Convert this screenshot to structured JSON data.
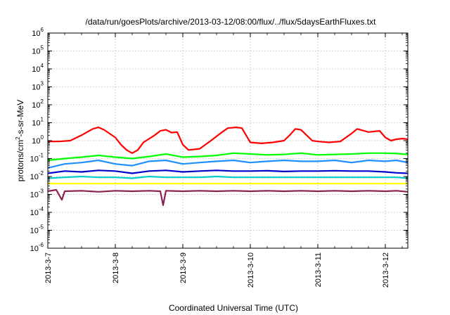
{
  "chart_data": {
    "type": "line",
    "title": "/data/run/goesPlots/archive/2013-03-12/08:00/flux/../flux/5daysEarthFluxes.txt",
    "xlabel": "Coordinated Universal Time (UTC)",
    "ylabel": "protons/cm²-s-sr-MeV",
    "ylabel_parts": {
      "before": "protons/cm",
      "sup": "2",
      "after": "-s-sr-MeV"
    },
    "yscale": "log",
    "ylim": [
      1e-06,
      1000000.0
    ],
    "xlim": [
      "2013-03-07T00:00",
      "2013-03-12T08:00"
    ],
    "grid": true,
    "legend": false,
    "y_ticks": [
      {
        "base": "10",
        "exp": "6",
        "value": 1000000.0
      },
      {
        "base": "10",
        "exp": "5",
        "value": 100000.0
      },
      {
        "base": "10",
        "exp": "4",
        "value": 10000.0
      },
      {
        "base": "10",
        "exp": "3",
        "value": 1000.0
      },
      {
        "base": "10",
        "exp": "2",
        "value": 100.0
      },
      {
        "base": "10",
        "exp": "1",
        "value": 10.0
      },
      {
        "base": "10",
        "exp": "0",
        "value": 1.0
      },
      {
        "base": "10",
        "exp": "-1",
        "value": 0.1
      },
      {
        "base": "10",
        "exp": "-2",
        "value": 0.01
      },
      {
        "base": "10",
        "exp": "-3",
        "value": 0.001
      },
      {
        "base": "10",
        "exp": "-4",
        "value": 0.0001
      },
      {
        "base": "10",
        "exp": "-5",
        "value": 1e-05
      },
      {
        "base": "10",
        "exp": "-6",
        "value": 1e-06
      }
    ],
    "x_ticks": [
      {
        "label": "2013-3-7",
        "value": "2013-03-07T00:00"
      },
      {
        "label": "2013-3-8",
        "value": "2013-03-08T00:00"
      },
      {
        "label": "2013-3-9",
        "value": "2013-03-09T00:00"
      },
      {
        "label": "2013-3-10",
        "value": "2013-03-10T00:00"
      },
      {
        "label": "2013-3-11",
        "value": "2013-03-11T00:00"
      },
      {
        "label": "2013-3-12",
        "value": "2013-03-12T00:00"
      }
    ],
    "series": [
      {
        "color": "#ff0000",
        "points": [
          [
            "2013-03-07T00:00",
            0.9
          ],
          [
            "2013-03-07T04:00",
            0.9
          ],
          [
            "2013-03-07T08:00",
            1.0
          ],
          [
            "2013-03-07T12:00",
            2.0
          ],
          [
            "2013-03-07T16:00",
            4.5
          ],
          [
            "2013-03-07T18:00",
            5.5
          ],
          [
            "2013-03-07T20:00",
            4.0
          ],
          [
            "2013-03-08T00:00",
            1.5
          ],
          [
            "2013-03-08T02:00",
            0.6
          ],
          [
            "2013-03-08T04:00",
            0.3
          ],
          [
            "2013-03-08T06:00",
            0.2
          ],
          [
            "2013-03-08T08:00",
            0.3
          ],
          [
            "2013-03-08T10:00",
            0.8
          ],
          [
            "2013-03-08T14:00",
            2.0
          ],
          [
            "2013-03-08T16:00",
            3.5
          ],
          [
            "2013-03-08T18:00",
            4.0
          ],
          [
            "2013-03-08T20:00",
            2.8
          ],
          [
            "2013-03-08T22:00",
            3.0
          ],
          [
            "2013-03-09T00:00",
            0.6
          ],
          [
            "2013-03-09T02:00",
            0.3
          ],
          [
            "2013-03-09T06:00",
            0.35
          ],
          [
            "2013-03-09T10:00",
            1.0
          ],
          [
            "2013-03-09T14:00",
            3.0
          ],
          [
            "2013-03-09T16:00",
            5.0
          ],
          [
            "2013-03-09T19:00",
            5.5
          ],
          [
            "2013-03-09T21:00",
            5.0
          ],
          [
            "2013-03-10T00:00",
            0.8
          ],
          [
            "2013-03-10T04:00",
            0.7
          ],
          [
            "2013-03-10T08:00",
            0.8
          ],
          [
            "2013-03-10T12:00",
            1.0
          ],
          [
            "2013-03-10T14:00",
            2.0
          ],
          [
            "2013-03-10T16:00",
            4.5
          ],
          [
            "2013-03-10T18:00",
            4.0
          ],
          [
            "2013-03-10T22:00",
            1.0
          ],
          [
            "2013-03-11T00:00",
            0.9
          ],
          [
            "2013-03-11T04:00",
            0.8
          ],
          [
            "2013-03-11T08:00",
            0.9
          ],
          [
            "2013-03-11T12:00",
            2.5
          ],
          [
            "2013-03-11T14:00",
            4.5
          ],
          [
            "2013-03-11T18:00",
            3.0
          ],
          [
            "2013-03-11T22:00",
            3.5
          ],
          [
            "2013-03-12T00:00",
            1.5
          ],
          [
            "2013-03-12T02:00",
            1.0
          ],
          [
            "2013-03-12T04:00",
            1.2
          ],
          [
            "2013-03-12T06:00",
            1.3
          ],
          [
            "2013-03-12T08:00",
            1.2
          ]
        ]
      },
      {
        "color": "#00ff00",
        "points": [
          [
            "2013-03-07T00:00",
            0.08
          ],
          [
            "2013-03-07T06:00",
            0.1
          ],
          [
            "2013-03-07T12:00",
            0.12
          ],
          [
            "2013-03-07T18:00",
            0.15
          ],
          [
            "2013-03-08T00:00",
            0.12
          ],
          [
            "2013-03-08T06:00",
            0.1
          ],
          [
            "2013-03-08T12:00",
            0.13
          ],
          [
            "2013-03-08T18:00",
            0.18
          ],
          [
            "2013-03-09T00:00",
            0.12
          ],
          [
            "2013-03-09T06:00",
            0.13
          ],
          [
            "2013-03-09T12:00",
            0.15
          ],
          [
            "2013-03-09T18:00",
            0.2
          ],
          [
            "2013-03-10T00:00",
            0.18
          ],
          [
            "2013-03-10T06:00",
            0.16
          ],
          [
            "2013-03-10T12:00",
            0.17
          ],
          [
            "2013-03-10T18:00",
            0.2
          ],
          [
            "2013-03-11T00:00",
            0.16
          ],
          [
            "2013-03-11T06:00",
            0.17
          ],
          [
            "2013-03-11T12:00",
            0.18
          ],
          [
            "2013-03-11T18:00",
            0.2
          ],
          [
            "2013-03-12T00:00",
            0.2
          ],
          [
            "2013-03-12T04:00",
            0.19
          ],
          [
            "2013-03-12T08:00",
            0.17
          ]
        ]
      },
      {
        "color": "#1e90ff",
        "points": [
          [
            "2013-03-07T00:00",
            0.03
          ],
          [
            "2013-03-07T06:00",
            0.05
          ],
          [
            "2013-03-07T12:00",
            0.06
          ],
          [
            "2013-03-07T18:00",
            0.08
          ],
          [
            "2013-03-08T00:00",
            0.05
          ],
          [
            "2013-03-08T06:00",
            0.04
          ],
          [
            "2013-03-08T12:00",
            0.07
          ],
          [
            "2013-03-08T18:00",
            0.08
          ],
          [
            "2013-03-09T00:00",
            0.05
          ],
          [
            "2013-03-09T06:00",
            0.06
          ],
          [
            "2013-03-09T12:00",
            0.07
          ],
          [
            "2013-03-09T18:00",
            0.08
          ],
          [
            "2013-03-10T00:00",
            0.06
          ],
          [
            "2013-03-10T06:00",
            0.07
          ],
          [
            "2013-03-10T12:00",
            0.08
          ],
          [
            "2013-03-10T18:00",
            0.07
          ],
          [
            "2013-03-11T00:00",
            0.07
          ],
          [
            "2013-03-11T06:00",
            0.08
          ],
          [
            "2013-03-11T12:00",
            0.06
          ],
          [
            "2013-03-11T18:00",
            0.08
          ],
          [
            "2013-03-12T00:00",
            0.07
          ],
          [
            "2013-03-12T04:00",
            0.08
          ],
          [
            "2013-03-12T08:00",
            0.06
          ]
        ]
      },
      {
        "color": "#0000cd",
        "points": [
          [
            "2013-03-07T00:00",
            0.015
          ],
          [
            "2013-03-07T06:00",
            0.02
          ],
          [
            "2013-03-07T12:00",
            0.018
          ],
          [
            "2013-03-07T18:00",
            0.022
          ],
          [
            "2013-03-08T00:00",
            0.02
          ],
          [
            "2013-03-08T06:00",
            0.015
          ],
          [
            "2013-03-08T12:00",
            0.02
          ],
          [
            "2013-03-08T18:00",
            0.022
          ],
          [
            "2013-03-09T00:00",
            0.018
          ],
          [
            "2013-03-09T06:00",
            0.02
          ],
          [
            "2013-03-09T12:00",
            0.022
          ],
          [
            "2013-03-09T18:00",
            0.02
          ],
          [
            "2013-03-10T00:00",
            0.02
          ],
          [
            "2013-03-10T06:00",
            0.021
          ],
          [
            "2013-03-10T12:00",
            0.019
          ],
          [
            "2013-03-10T18:00",
            0.02
          ],
          [
            "2013-03-11T00:00",
            0.02
          ],
          [
            "2013-03-11T06:00",
            0.021
          ],
          [
            "2013-03-11T12:00",
            0.02
          ],
          [
            "2013-03-11T18:00",
            0.02
          ],
          [
            "2013-03-12T00:00",
            0.018
          ],
          [
            "2013-03-12T04:00",
            0.016
          ],
          [
            "2013-03-12T08:00",
            0.015
          ]
        ]
      },
      {
        "color": "#00cccc",
        "points": [
          [
            "2013-03-07T00:00",
            0.008
          ],
          [
            "2013-03-07T06:00",
            0.009
          ],
          [
            "2013-03-07T12:00",
            0.01
          ],
          [
            "2013-03-07T18:00",
            0.009
          ],
          [
            "2013-03-08T00:00",
            0.009
          ],
          [
            "2013-03-08T06:00",
            0.008
          ],
          [
            "2013-03-08T12:00",
            0.01
          ],
          [
            "2013-03-08T18:00",
            0.009
          ],
          [
            "2013-03-09T00:00",
            0.009
          ],
          [
            "2013-03-09T06:00",
            0.009
          ],
          [
            "2013-03-09T12:00",
            0.01
          ],
          [
            "2013-03-09T18:00",
            0.009
          ],
          [
            "2013-03-10T00:00",
            0.009
          ],
          [
            "2013-03-10T06:00",
            0.009
          ],
          [
            "2013-03-10T12:00",
            0.009
          ],
          [
            "2013-03-10T18:00",
            0.009
          ],
          [
            "2013-03-11T00:00",
            0.009
          ],
          [
            "2013-03-11T06:00",
            0.009
          ],
          [
            "2013-03-11T12:00",
            0.009
          ],
          [
            "2013-03-11T18:00",
            0.009
          ],
          [
            "2013-03-12T00:00",
            0.009
          ],
          [
            "2013-03-12T04:00",
            0.009
          ],
          [
            "2013-03-12T08:00",
            0.008
          ]
        ]
      },
      {
        "color": "#ffff00",
        "points": [
          [
            "2013-03-07T00:00",
            0.004
          ],
          [
            "2013-03-07T12:00",
            0.004
          ],
          [
            "2013-03-08T00:00",
            0.004
          ],
          [
            "2013-03-08T12:00",
            0.004
          ],
          [
            "2013-03-09T00:00",
            0.004
          ],
          [
            "2013-03-09T12:00",
            0.004
          ],
          [
            "2013-03-10T00:00",
            0.004
          ],
          [
            "2013-03-10T12:00",
            0.004
          ],
          [
            "2013-03-11T00:00",
            0.004
          ],
          [
            "2013-03-11T12:00",
            0.004
          ],
          [
            "2013-03-12T00:00",
            0.004
          ],
          [
            "2013-03-12T08:00",
            0.004
          ]
        ]
      },
      {
        "color": "#8b2252",
        "points": [
          [
            "2013-03-07T00:00",
            0.0015
          ],
          [
            "2013-03-07T03:00",
            0.0018
          ],
          [
            "2013-03-07T05:00",
            0.0005
          ],
          [
            "2013-03-07T06:00",
            0.0015
          ],
          [
            "2013-03-07T12:00",
            0.0016
          ],
          [
            "2013-03-07T18:00",
            0.0014
          ],
          [
            "2013-03-08T00:00",
            0.0016
          ],
          [
            "2013-03-08T06:00",
            0.0015
          ],
          [
            "2013-03-08T12:00",
            0.0016
          ],
          [
            "2013-03-08T16:00",
            0.0015
          ],
          [
            "2013-03-08T17:00",
            0.00025
          ],
          [
            "2013-03-08T18:00",
            0.0016
          ],
          [
            "2013-03-09T00:00",
            0.0015
          ],
          [
            "2013-03-09T06:00",
            0.0016
          ],
          [
            "2013-03-09T12:00",
            0.0015
          ],
          [
            "2013-03-09T18:00",
            0.0016
          ],
          [
            "2013-03-10T00:00",
            0.0015
          ],
          [
            "2013-03-10T06:00",
            0.0016
          ],
          [
            "2013-03-10T12:00",
            0.0015
          ],
          [
            "2013-03-10T18:00",
            0.0016
          ],
          [
            "2013-03-11T00:00",
            0.0015
          ],
          [
            "2013-03-11T06:00",
            0.0016
          ],
          [
            "2013-03-11T12:00",
            0.0015
          ],
          [
            "2013-03-11T18:00",
            0.0016
          ],
          [
            "2013-03-12T00:00",
            0.0015
          ],
          [
            "2013-03-12T04:00",
            0.0016
          ],
          [
            "2013-03-12T08:00",
            0.0014
          ]
        ]
      }
    ]
  }
}
